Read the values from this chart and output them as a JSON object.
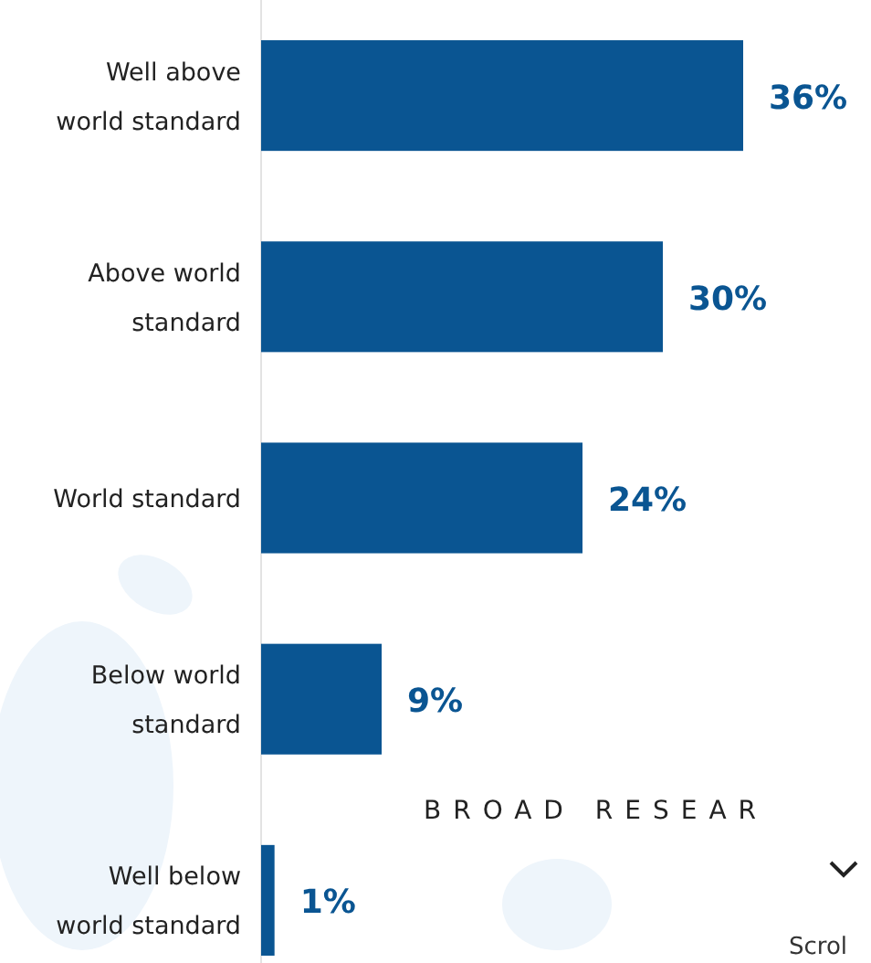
{
  "chart_data": {
    "type": "bar",
    "orientation": "horizontal",
    "categories": [
      "Well above world standard",
      "Above world standard",
      "World standard",
      "Below world standard",
      "Well below world standard"
    ],
    "values": [
      36,
      30,
      24,
      9,
      1
    ],
    "value_labels": [
      "36%",
      "30%",
      "24%",
      "9%",
      "1%"
    ],
    "color": "#0a5592",
    "annotations": [
      "BROAD RESEAR",
      "Scrol"
    ]
  }
}
